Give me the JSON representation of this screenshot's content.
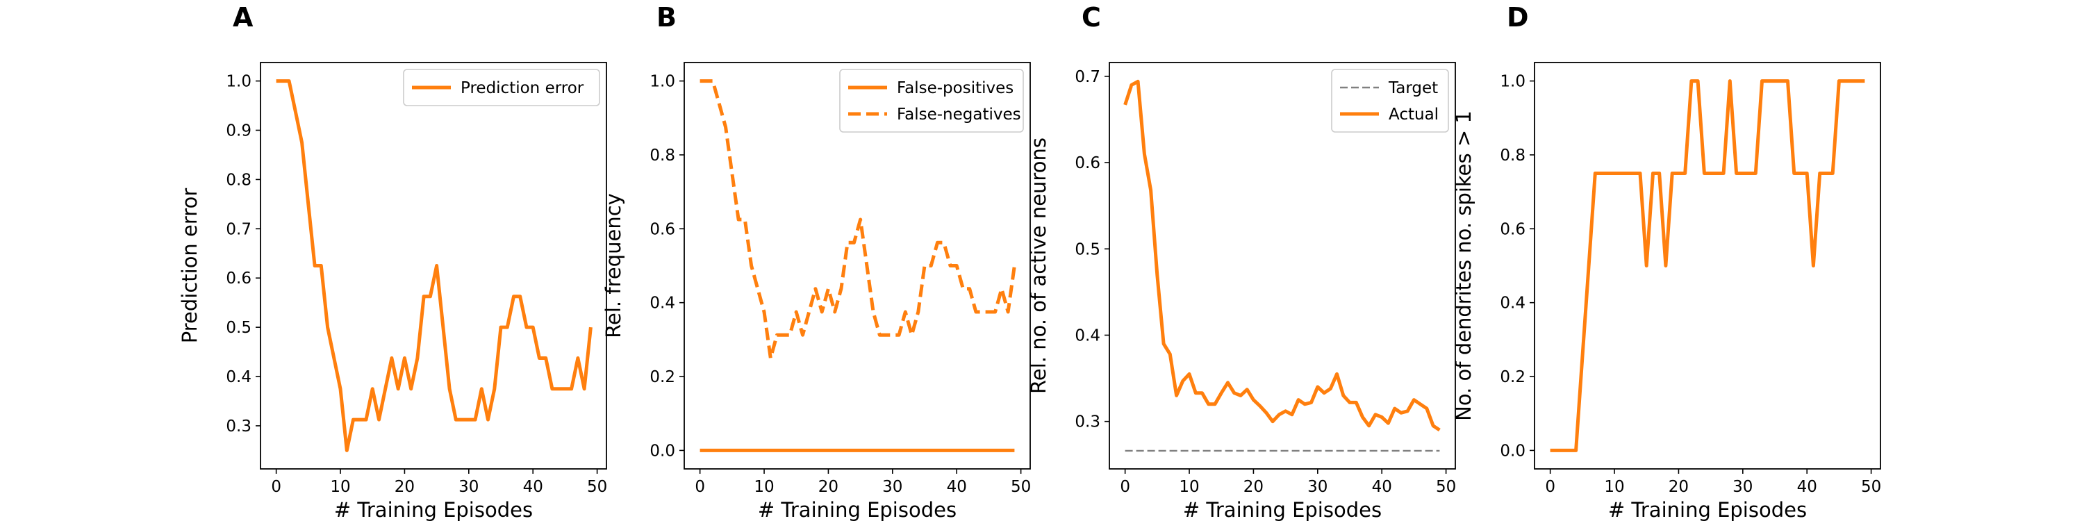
{
  "chart_data": [
    {
      "panel": "A",
      "type": "line",
      "xlabel": "# Training Episodes",
      "ylabel": "Prediction error",
      "xlim": [
        -2.45,
        51.45
      ],
      "ylim": [
        0.2125,
        1.0375
      ],
      "xticks": [
        0,
        10,
        20,
        30,
        40,
        50
      ],
      "yticks": [
        0.3,
        0.4,
        0.5,
        0.6,
        0.7,
        0.8,
        0.9,
        1.0
      ],
      "ytick_labels": [
        "0.3",
        "0.4",
        "0.5",
        "0.6",
        "0.7",
        "0.8",
        "0.9",
        "1.0"
      ],
      "legend": "top-right",
      "series": [
        {
          "name": "Prediction error",
          "color": "#ff7f0e",
          "dash": "solid",
          "values": [
            1.0,
            1.0,
            1.0,
            0.9375,
            0.875,
            0.75,
            0.625,
            0.625,
            0.5,
            0.4375,
            0.375,
            0.25,
            0.3125,
            0.3125,
            0.3125,
            0.375,
            0.3125,
            0.375,
            0.4375,
            0.375,
            0.4375,
            0.375,
            0.4375,
            0.5625,
            0.5625,
            0.625,
            0.5,
            0.375,
            0.3125,
            0.3125,
            0.3125,
            0.3125,
            0.375,
            0.3125,
            0.375,
            0.5,
            0.5,
            0.5625,
            0.5625,
            0.5,
            0.5,
            0.4375,
            0.4375,
            0.375,
            0.375,
            0.375,
            0.375,
            0.4375,
            0.375,
            0.5
          ]
        }
      ]
    },
    {
      "panel": "B",
      "type": "line",
      "xlabel": "# Training Episodes",
      "ylabel": "Rel. frequency",
      "xlim": [
        -2.45,
        51.45
      ],
      "ylim": [
        -0.05,
        1.05
      ],
      "xticks": [
        0,
        10,
        20,
        30,
        40,
        50
      ],
      "yticks": [
        0.0,
        0.2,
        0.4,
        0.6,
        0.8,
        1.0
      ],
      "ytick_labels": [
        "0.0",
        "0.2",
        "0.4",
        "0.6",
        "0.8",
        "1.0"
      ],
      "legend": "top-right",
      "series": [
        {
          "name": "False-positives",
          "color": "#ff7f0e",
          "dash": "solid",
          "values": [
            0,
            0,
            0,
            0,
            0,
            0,
            0,
            0,
            0,
            0,
            0,
            0,
            0,
            0,
            0,
            0,
            0,
            0,
            0,
            0,
            0,
            0,
            0,
            0,
            0,
            0,
            0,
            0,
            0,
            0,
            0,
            0,
            0,
            0,
            0,
            0,
            0,
            0,
            0,
            0,
            0,
            0,
            0,
            0,
            0,
            0,
            0,
            0,
            0,
            0
          ]
        },
        {
          "name": "False-negatives",
          "color": "#ff7f0e",
          "dash": "dashed",
          "values": [
            1.0,
            1.0,
            1.0,
            0.9375,
            0.875,
            0.75,
            0.625,
            0.625,
            0.5,
            0.4375,
            0.375,
            0.25,
            0.3125,
            0.3125,
            0.3125,
            0.375,
            0.3125,
            0.375,
            0.4375,
            0.375,
            0.4375,
            0.375,
            0.4375,
            0.5625,
            0.5625,
            0.625,
            0.5,
            0.375,
            0.3125,
            0.3125,
            0.3125,
            0.3125,
            0.375,
            0.3125,
            0.375,
            0.5,
            0.5,
            0.5625,
            0.5625,
            0.5,
            0.5,
            0.4375,
            0.4375,
            0.375,
            0.375,
            0.375,
            0.375,
            0.4375,
            0.375,
            0.5
          ]
        }
      ]
    },
    {
      "panel": "C",
      "type": "line",
      "xlabel": "# Training Episodes",
      "ylabel": "Rel. no. of active neurons",
      "xlim": [
        -2.45,
        51.45
      ],
      "ylim": [
        0.245,
        0.716
      ],
      "xticks": [
        0,
        10,
        20,
        30,
        40,
        50
      ],
      "yticks": [
        0.3,
        0.4,
        0.5,
        0.6,
        0.7
      ],
      "ytick_labels": [
        "0.3",
        "0.4",
        "0.5",
        "0.6",
        "0.7"
      ],
      "legend": "top-right",
      "series": [
        {
          "name": "Target",
          "color": "#808080",
          "dash": "dashed",
          "values": [
            0.266,
            0.266,
            0.266,
            0.266,
            0.266,
            0.266,
            0.266,
            0.266,
            0.266,
            0.266,
            0.266,
            0.266,
            0.266,
            0.266,
            0.266,
            0.266,
            0.266,
            0.266,
            0.266,
            0.266,
            0.266,
            0.266,
            0.266,
            0.266,
            0.266,
            0.266,
            0.266,
            0.266,
            0.266,
            0.266,
            0.266,
            0.266,
            0.266,
            0.266,
            0.266,
            0.266,
            0.266,
            0.266,
            0.266,
            0.266,
            0.266,
            0.266,
            0.266,
            0.266,
            0.266,
            0.266,
            0.266,
            0.266,
            0.266,
            0.266
          ]
        },
        {
          "name": "Actual",
          "color": "#ff7f0e",
          "dash": "solid",
          "values": [
            0.667,
            0.69,
            0.694,
            0.61,
            0.568,
            0.47,
            0.39,
            0.378,
            0.33,
            0.347,
            0.355,
            0.333,
            0.333,
            0.32,
            0.32,
            0.333,
            0.345,
            0.333,
            0.33,
            0.337,
            0.325,
            0.318,
            0.31,
            0.3,
            0.308,
            0.312,
            0.308,
            0.325,
            0.32,
            0.322,
            0.34,
            0.333,
            0.338,
            0.355,
            0.33,
            0.322,
            0.322,
            0.305,
            0.295,
            0.308,
            0.305,
            0.298,
            0.315,
            0.31,
            0.312,
            0.325,
            0.32,
            0.315,
            0.295,
            0.29
          ]
        }
      ]
    },
    {
      "panel": "D",
      "type": "line",
      "xlabel": "# Training Episodes",
      "ylabel": "No. of dendrites no. spikes > 1",
      "xlim": [
        -2.45,
        51.45
      ],
      "ylim": [
        -0.05,
        1.05
      ],
      "xticks": [
        0,
        10,
        20,
        30,
        40,
        50
      ],
      "yticks": [
        0.0,
        0.2,
        0.4,
        0.6,
        0.8,
        1.0
      ],
      "ytick_labels": [
        "0.0",
        "0.2",
        "0.4",
        "0.6",
        "0.8",
        "1.0"
      ],
      "legend": "none",
      "series": [
        {
          "name": "",
          "color": "#ff7f0e",
          "dash": "solid",
          "values": [
            0,
            0,
            0,
            0,
            0,
            0.25,
            0.5,
            0.75,
            0.75,
            0.75,
            0.75,
            0.75,
            0.75,
            0.75,
            0.75,
            0.5,
            0.75,
            0.75,
            0.5,
            0.75,
            0.75,
            0.75,
            1.0,
            1.0,
            0.75,
            0.75,
            0.75,
            0.75,
            1.0,
            0.75,
            0.75,
            0.75,
            0.75,
            1.0,
            1.0,
            1.0,
            1.0,
            1.0,
            0.75,
            0.75,
            0.75,
            0.5,
            0.75,
            0.75,
            0.75,
            1.0,
            1.0,
            1.0,
            1.0,
            1.0
          ]
        }
      ]
    }
  ]
}
